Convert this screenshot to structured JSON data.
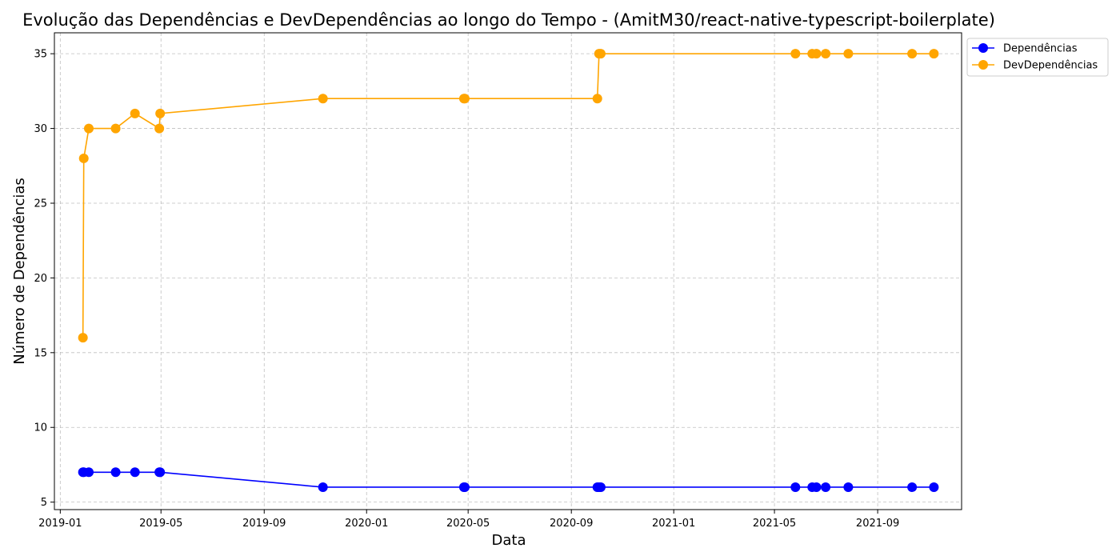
{
  "chart_data": {
    "type": "line",
    "title": "Evolução das Dependências e DevDependências ao longo do Tempo - (AmitM30/react-native-typescript-boilerplate)",
    "xlabel": "Data",
    "ylabel": "Número de Dependências",
    "x_ticks": [
      "2019-01",
      "2019-05",
      "2019-09",
      "2020-01",
      "2020-05",
      "2020-09",
      "2021-01",
      "2021-05",
      "2021-09"
    ],
    "y_ticks": [
      5,
      10,
      15,
      20,
      25,
      30,
      35
    ],
    "xlim": [
      "2018-12-25",
      "2021-12-10"
    ],
    "ylim": [
      4.5,
      36.4
    ],
    "grid": true,
    "legend_position": "upper-right-outside",
    "x": [
      "2019-01-28",
      "2019-01-29",
      "2019-02-04",
      "2019-03-08",
      "2019-03-31",
      "2019-04-29",
      "2019-04-30",
      "2019-11-10",
      "2020-04-26",
      "2020-04-27",
      "2020-10-02",
      "2020-10-04",
      "2020-10-06",
      "2021-05-26",
      "2021-06-15",
      "2021-06-20",
      "2021-07-01",
      "2021-07-28",
      "2021-10-12",
      "2021-11-07"
    ],
    "series": [
      {
        "name": "Dependências",
        "color": "#0000ff",
        "values": [
          7,
          7,
          7,
          7,
          7,
          7,
          7,
          6,
          6,
          6,
          6,
          6,
          6,
          6,
          6,
          6,
          6,
          6,
          6,
          6
        ]
      },
      {
        "name": "DevDependências",
        "color": "#ffa500",
        "values": [
          16,
          28,
          30,
          30,
          31,
          30,
          31,
          32,
          32,
          32,
          32,
          35,
          35,
          35,
          35,
          35,
          35,
          35,
          35,
          35
        ]
      }
    ]
  }
}
